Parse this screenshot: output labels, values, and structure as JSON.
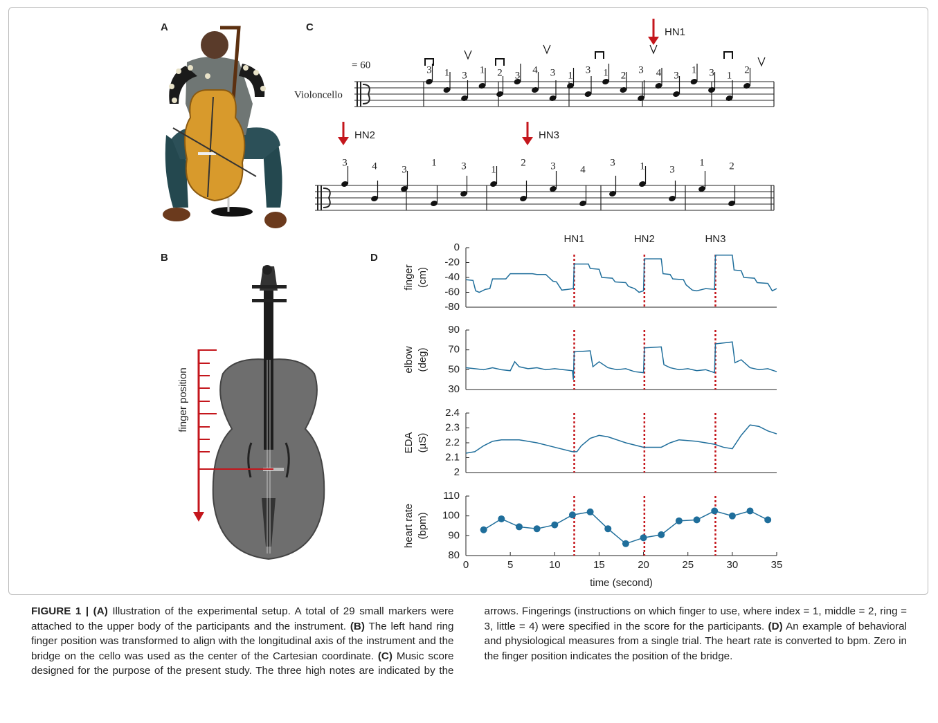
{
  "panel_labels": [
    "A",
    "B",
    "C",
    "D"
  ],
  "score": {
    "tempo": "= 60",
    "instrument": "Violoncello",
    "arrows": [
      "HN1",
      "HN2",
      "HN3"
    ],
    "fingerings_row1": [
      "3",
      "1",
      "3",
      "1",
      "2",
      "3",
      "4",
      "3",
      "1",
      "3",
      "1",
      "2",
      "3",
      "4",
      "3",
      "1",
      "3",
      "1",
      "2"
    ],
    "fingerings_row2": [
      "3",
      "4",
      "3",
      "1",
      "3",
      "1",
      "2",
      "3",
      "4",
      "3",
      "1",
      "3",
      "1",
      "2"
    ]
  },
  "cello": {
    "label": "finger position"
  },
  "chart_data": [
    {
      "type": "line",
      "ylabel": [
        "finger",
        "(cm)"
      ],
      "xlim": [
        0,
        35
      ],
      "ylim": [
        -80,
        0
      ],
      "yticks": [
        0,
        -20,
        -40,
        -60,
        -80
      ],
      "x": [
        0,
        0.8,
        1.1,
        1.5,
        2.2,
        2.7,
        3.0,
        4.5,
        5.0,
        7.5,
        8.0,
        9.0,
        9.8,
        10.2,
        10.8,
        11.5,
        12.1,
        12.2,
        13.8,
        14.0,
        15.0,
        15.3,
        16.5,
        16.8,
        18.0,
        18.3,
        19.0,
        19.5,
        20.0,
        20.1,
        22.0,
        22.2,
        23.0,
        23.3,
        24.5,
        24.8,
        25.5,
        26.0,
        27.0,
        28.0,
        28.1,
        30.0,
        30.2,
        31.0,
        31.3,
        32.5,
        32.8,
        34.0,
        34.5,
        35.0
      ],
      "series": [
        {
          "color": "#1f6e9b",
          "values": [
            -43,
            -44,
            -58,
            -60,
            -56,
            -55,
            -42,
            -42,
            -35,
            -35,
            -36,
            -36,
            -45,
            -46,
            -57,
            -56,
            -55,
            -22,
            -22,
            -28,
            -29,
            -40,
            -41,
            -46,
            -47,
            -52,
            -55,
            -60,
            -58,
            -15,
            -15,
            -35,
            -36,
            -42,
            -43,
            -50,
            -57,
            -58,
            -55,
            -56,
            -10,
            -10,
            -30,
            -31,
            -40,
            -41,
            -47,
            -48,
            -58,
            -55
          ]
        }
      ],
      "events": {
        "color": "#c4161c",
        "x": [
          12.2,
          20.1,
          28.1
        ],
        "labels": [
          "HN1",
          "HN2",
          "HN3"
        ]
      }
    },
    {
      "type": "line",
      "ylabel": [
        "elbow",
        "(deg)"
      ],
      "xlim": [
        0,
        35
      ],
      "ylim": [
        30,
        90
      ],
      "yticks": [
        30,
        50,
        70,
        90
      ],
      "x": [
        0,
        1,
        2,
        3,
        4,
        5,
        5.5,
        6,
        7,
        8,
        9,
        10,
        11,
        12,
        12.1,
        12.2,
        14,
        14.3,
        15,
        16,
        17,
        18,
        19,
        20,
        20.1,
        22,
        22.3,
        23,
        24,
        25,
        26,
        27,
        28,
        28.1,
        30,
        30.3,
        31,
        32,
        33,
        34,
        35
      ],
      "series": [
        {
          "color": "#1f6e9b",
          "values": [
            52,
            51,
            50,
            52,
            50,
            49,
            58,
            53,
            51,
            52,
            50,
            51,
            50,
            49,
            40,
            68,
            69,
            53,
            58,
            52,
            50,
            51,
            48,
            47,
            72,
            73,
            55,
            52,
            50,
            51,
            49,
            50,
            47,
            76,
            78,
            57,
            60,
            52,
            50,
            51,
            48
          ]
        }
      ],
      "events": {
        "color": "#c4161c",
        "x": [
          12.2,
          20.1,
          28.1
        ]
      }
    },
    {
      "type": "line",
      "ylabel": [
        "EDA",
        "(µS)"
      ],
      "xlim": [
        0,
        35
      ],
      "ylim": [
        2,
        2.4
      ],
      "yticks": [
        2,
        2.1,
        2.2,
        2.3,
        2.4
      ],
      "x": [
        0,
        1,
        2,
        3,
        4,
        6,
        8,
        10,
        12,
        12.5,
        13,
        14,
        15,
        16,
        18,
        20,
        22,
        23,
        24,
        26,
        28,
        29,
        30,
        31,
        32,
        33,
        34,
        35
      ],
      "series": [
        {
          "color": "#1f6e9b",
          "values": [
            2.13,
            2.14,
            2.18,
            2.21,
            2.22,
            2.22,
            2.2,
            2.17,
            2.14,
            2.14,
            2.18,
            2.23,
            2.25,
            2.24,
            2.2,
            2.17,
            2.17,
            2.2,
            2.22,
            2.21,
            2.19,
            2.17,
            2.16,
            2.25,
            2.32,
            2.31,
            2.28,
            2.26
          ]
        }
      ],
      "events": {
        "color": "#c4161c",
        "x": [
          12.2,
          20.1,
          28.1
        ]
      }
    },
    {
      "type": "line",
      "markers": true,
      "ylabel": [
        "heart rate",
        "(bpm)"
      ],
      "xlabel": "time (second)",
      "xlim": [
        0,
        35
      ],
      "ylim": [
        80,
        110
      ],
      "yticks": [
        80,
        90,
        100,
        110
      ],
      "xticks": [
        0,
        5,
        10,
        15,
        20,
        25,
        30,
        35
      ],
      "x": [
        2,
        4,
        6,
        8,
        10,
        12,
        14,
        16,
        18,
        20,
        22,
        24,
        26,
        28,
        30,
        32,
        34
      ],
      "series": [
        {
          "color": "#1f6e9b",
          "values": [
            93,
            98.5,
            94.5,
            93.5,
            95.5,
            100.5,
            102,
            93.5,
            86,
            89,
            90.5,
            97.5,
            98,
            102.5,
            100,
            102.5,
            98
          ]
        }
      ],
      "events": {
        "color": "#c4161c",
        "x": [
          12.2,
          20.1,
          28.1
        ]
      }
    }
  ],
  "caption": [
    {
      "text": "FIGURE 1 | (A)",
      "bold": true
    },
    {
      "text": " Illustration of the experimental setup. A total of 29 small markers were attached to the upper body of the participants and the instrument. ",
      "bold": false
    },
    {
      "text": "(B)",
      "bold": true
    },
    {
      "text": " The left hand ring finger position was transformed to align with the longitudinal axis of the instrument and the bridge on the cello was used as the center of the Cartesian coordinate. ",
      "bold": false
    },
    {
      "text": "(C)",
      "bold": true
    },
    {
      "text": " Music score designed for the purpose of the present study. The three high notes are indicated by the arrows. Fingerings (instructions on which finger to use, where index = 1, middle = 2, ring = 3, little = 4) were specified in the score for the participants. ",
      "bold": false
    },
    {
      "text": "(D)",
      "bold": true
    },
    {
      "text": " An example of behavioral and physiological measures from a single trial. The heart rate is converted to bpm. Zero in the finger position indicates the position of the bridge.",
      "bold": false
    }
  ]
}
